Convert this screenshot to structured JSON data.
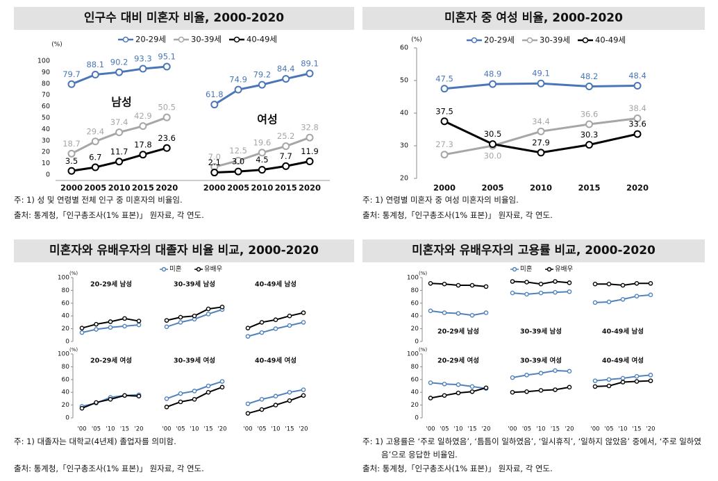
{
  "chart_data": [
    {
      "type": "line",
      "title": "인구수 대비 미혼자 비율, 2000-2020",
      "y_unit": "(%)",
      "categories": [
        "2000",
        "2005",
        "2010",
        "2015",
        "2020",
        null,
        "2000",
        "2005",
        "2010",
        "2015",
        "2020"
      ],
      "ylim": [
        0,
        100
      ],
      "yticks": [
        0,
        10,
        20,
        30,
        40,
        50,
        60,
        70,
        80,
        90,
        100
      ],
      "grid": false,
      "group_labels": [
        "남성",
        "여성"
      ],
      "series": [
        {
          "name": "20-29세",
          "color": "#4a76b8",
          "values": [
            79.7,
            88.1,
            90.2,
            93.3,
            95.1,
            null,
            61.8,
            74.9,
            79.2,
            84.4,
            89.1
          ],
          "value_labels": [
            "79.7",
            "88.1",
            "90.2",
            "93.3",
            "95.1",
            null,
            "61.8",
            "74.9",
            "79.2",
            "84.4",
            "89.1"
          ]
        },
        {
          "name": "30-39세",
          "color": "#a6a6a6",
          "values": [
            18.7,
            29.4,
            37.4,
            42.9,
            50.5,
            null,
            7.0,
            12.5,
            19.6,
            25.2,
            32.8
          ],
          "value_labels": [
            "18.7",
            "29.4",
            "37.4",
            "42.9",
            "50.5",
            null,
            "7.0",
            "12.5",
            "19.6",
            "25.2",
            "32.8"
          ]
        },
        {
          "name": "40-49세",
          "color": "#000000",
          "values": [
            3.5,
            6.7,
            11.7,
            17.8,
            23.6,
            null,
            2.1,
            3.0,
            4.5,
            7.7,
            11.9
          ],
          "value_labels": [
            "3.5",
            "6.7",
            "11.7",
            "17.8",
            "23.6",
            null,
            "2.1",
            "3.0",
            "4.5",
            "7.7",
            "11.9"
          ]
        }
      ],
      "notes": [
        "주: 1) 성 및 연령별 전체 인구 중 미혼자의 비율임.",
        "출처: 통계청,「인구총조사(1% 표본)」 원자료, 각 연도."
      ]
    },
    {
      "type": "line",
      "title": "미혼자 중 여성 비율, 2000-2020",
      "y_unit": "(%)",
      "categories": [
        "2000",
        "2005",
        "2010",
        "2015",
        "2020"
      ],
      "ylim": [
        20,
        60
      ],
      "yticks": [
        20,
        30,
        40,
        50,
        60
      ],
      "grid": false,
      "series": [
        {
          "name": "20-29세",
          "color": "#4a76b8",
          "values": [
            47.5,
            48.9,
            49.1,
            48.2,
            48.4
          ],
          "value_labels": [
            "47.5",
            "48.9",
            "49.1",
            "48.2",
            "48.4"
          ]
        },
        {
          "name": "30-39세",
          "color": "#a6a6a6",
          "values": [
            27.3,
            30.0,
            34.4,
            36.6,
            38.4
          ],
          "value_labels": [
            "27.3",
            "30.0",
            "34.4",
            "36.6",
            "38.4"
          ]
        },
        {
          "name": "40-49세",
          "color": "#000000",
          "values": [
            37.5,
            30.5,
            27.9,
            30.3,
            33.6
          ],
          "value_labels": [
            "37.5",
            "30.5",
            "27.9",
            "30.3",
            "33.6"
          ]
        }
      ],
      "notes": [
        "주: 1) 연령별 미혼자 중 여성 미혼자의 비율임.",
        "출처: 통계청,「인구총조사(1% 표본)」 원자료, 각 연도."
      ]
    },
    {
      "type": "line",
      "title": "미혼자와 유배우자의 대졸자 비율 비교, 2000-2020",
      "y_unit": "(%)",
      "categories": [
        "'00",
        "'05",
        "'10",
        "'15",
        "'20"
      ],
      "ylim": [
        0,
        100
      ],
      "yticks": [
        0,
        20,
        40,
        60,
        80,
        100
      ],
      "grid": false,
      "series": [
        {
          "name": "미혼",
          "color": "#4f81bd"
        },
        {
          "name": "유배우",
          "color": "#000000"
        }
      ],
      "panels": [
        {
          "title": "20-29세 남성",
          "values": [
            [
              14,
              19,
              22,
              24,
              26
            ],
            [
              21,
              27,
              31,
              36,
              32
            ]
          ]
        },
        {
          "title": "30-39세 남성",
          "values": [
            [
              23,
              30,
              35,
              43,
              50
            ],
            [
              33,
              38,
              40,
              51,
              54
            ]
          ]
        },
        {
          "title": "40-49세 남성",
          "values": [
            [
              8,
              14,
              20,
              25,
              30
            ],
            [
              21,
              30,
              34,
              40,
              45
            ]
          ]
        },
        {
          "title": "20-29세 여성",
          "values": [
            [
              18,
              23,
              32,
              35,
              36
            ],
            [
              15,
              24,
              29,
              35,
              34
            ]
          ]
        },
        {
          "title": "30-39세 여성",
          "values": [
            [
              30,
              38,
              42,
              50,
              57
            ],
            [
              17,
              25,
              29,
              40,
              48
            ]
          ]
        },
        {
          "title": "40-49세 여성",
          "values": [
            [
              22,
              29,
              34,
              40,
              44
            ],
            [
              7,
              13,
              20,
              27,
              35
            ]
          ]
        }
      ],
      "notes": [
        "주: 1) 대졸자는 대학교(4년제) 졸업자를 의미함.",
        "출처: 통계청,「인구총조사(1% 표본)」 원자료, 각 연도."
      ]
    },
    {
      "type": "line",
      "title": "미혼자와 유배우자의 고용률 비교, 2000-2020",
      "y_unit": "(%)",
      "categories": [
        "'00",
        "'05",
        "'10",
        "'15",
        "'20"
      ],
      "ylim": [
        0,
        100
      ],
      "yticks": [
        0,
        20,
        40,
        60,
        80,
        100
      ],
      "grid": false,
      "series": [
        {
          "name": "미혼",
          "color": "#4f81bd"
        },
        {
          "name": "유배우",
          "color": "#000000"
        }
      ],
      "panels": [
        {
          "title": "20-29세 남성",
          "values": [
            [
              48,
              45,
              44,
              41,
              45
            ],
            [
              91,
              90,
              88,
              88,
              86
            ]
          ]
        },
        {
          "title": "30-39세 남성",
          "values": [
            [
              76,
              74,
              76,
              77,
              78
            ],
            [
              94,
              93,
              90,
              94,
              92
            ]
          ]
        },
        {
          "title": "40-49세 남성",
          "values": [
            [
              61,
              62,
              66,
              71,
              73
            ],
            [
              90,
              90,
              88,
              91,
              91
            ]
          ]
        },
        {
          "title": "20-29세 여성",
          "values": [
            [
              55,
              53,
              52,
              49,
              46
            ],
            [
              31,
              35,
              39,
              41,
              47
            ]
          ]
        },
        {
          "title": "30-39세 여성",
          "values": [
            [
              63,
              67,
              70,
              74,
              73
            ],
            [
              40,
              41,
              43,
              44,
              48
            ]
          ]
        },
        {
          "title": "40-49세 여성",
          "values": [
            [
              58,
              60,
              62,
              65,
              67
            ],
            [
              49,
              50,
              56,
              57,
              58
            ]
          ]
        }
      ],
      "notes": [
        "주: 1) 고용률은 ‘주로 일하였음’, ‘틈틈이 일하였음’, ‘일시휴직’, ‘일하지 않았음’ 중에서, ‘주로 일하였음’으로 응답한 비율임.",
        "출처: 통계청,「인구총조사(1% 표본)」 원자료, 각 연도."
      ]
    }
  ]
}
